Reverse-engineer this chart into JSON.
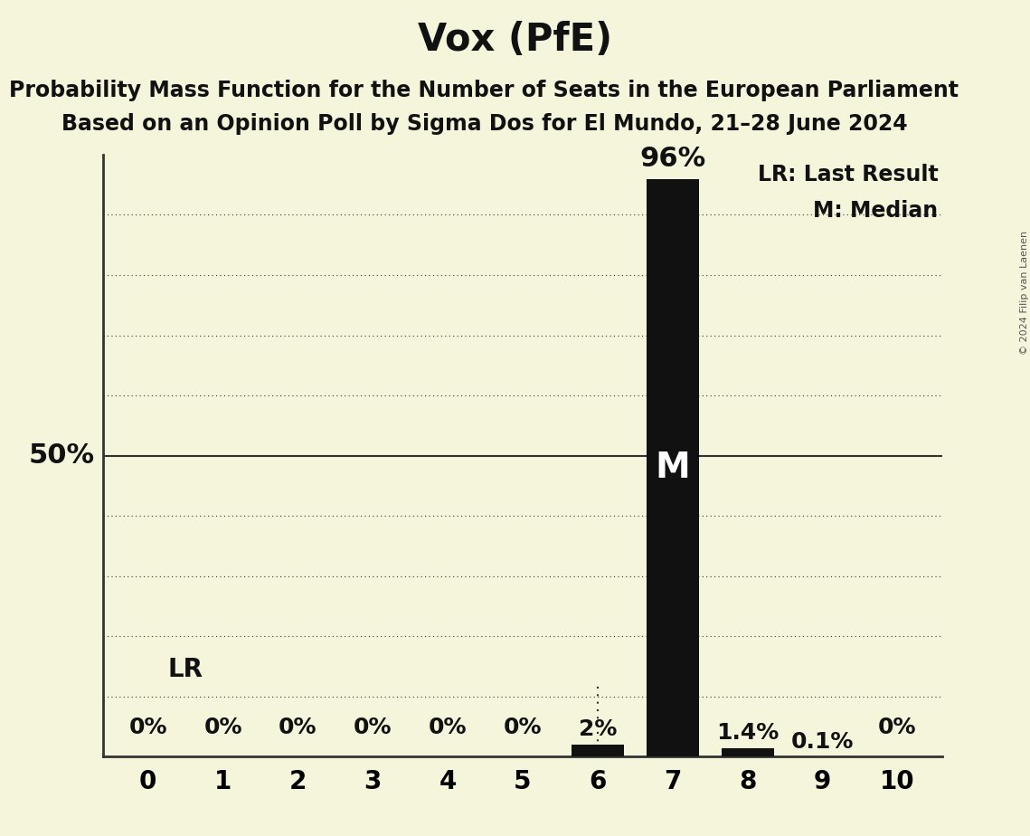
{
  "title": "Vox (PfE)",
  "subtitle1": "Probability Mass Function for the Number of Seats in the European Parliament",
  "subtitle2": "Based on an Opinion Poll by Sigma Dos for El Mundo, 21–28 June 2024",
  "copyright": "© 2024 Filip van Laenen",
  "seats": [
    0,
    1,
    2,
    3,
    4,
    5,
    6,
    7,
    8,
    9,
    10
  ],
  "probabilities": [
    0.0,
    0.0,
    0.0,
    0.0,
    0.0,
    0.0,
    2.0,
    96.0,
    1.4,
    0.1,
    0.0
  ],
  "bar_color": "#111111",
  "background_color": "#f5f5dc",
  "median_seat": 7,
  "last_result_seat": 6,
  "ylim": [
    0,
    100
  ],
  "ylabel_50": "50%",
  "bar_labels": [
    "0%",
    "0%",
    "0%",
    "0%",
    "0%",
    "0%",
    "2%",
    "96%",
    "1.4%",
    "0.1%",
    "0%"
  ],
  "legend_lr": "LR: Last Result",
  "legend_m": "M: Median",
  "grid_color": "#333333",
  "title_fontsize": 30,
  "subtitle_fontsize": 17,
  "tick_fontsize": 20,
  "bar_label_fontsize": 18,
  "ylabel_fontsize": 22,
  "legend_fontsize": 17,
  "lr_fontsize": 20,
  "median_label_fontsize": 28,
  "pct96_fontsize": 22
}
